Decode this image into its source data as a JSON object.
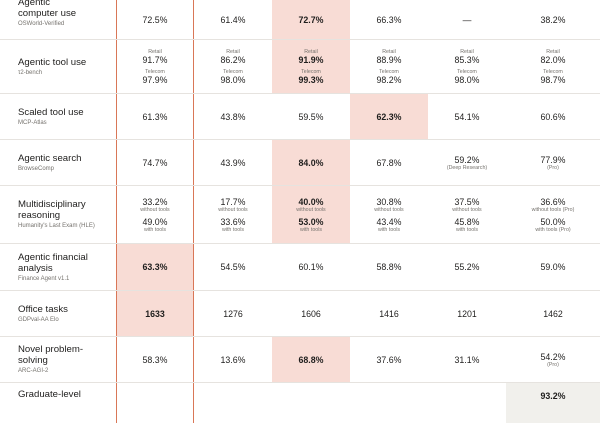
{
  "highlight_color": "#f8dcd5",
  "accent_line_color": "#d97757",
  "rows": [
    {
      "name": "Agentic\ncomputer use",
      "sub": "OSWorld-Verified",
      "cells": [
        {
          "value": "72.5%"
        },
        {
          "value": "61.4%"
        },
        {
          "value": "72.7%"
        },
        {
          "value": "66.3%"
        },
        {
          "value": "—"
        },
        {
          "value": "38.2%"
        }
      ]
    },
    {
      "name": "Agentic tool use",
      "sub": "τ2-bench",
      "cells": [
        {
          "l1": "Retail",
          "v1": "91.7%",
          "l2": "Telecom",
          "v2": "97.9%"
        },
        {
          "l1": "Retail",
          "v1": "86.2%",
          "l2": "Telecom",
          "v2": "98.0%"
        },
        {
          "l1": "Retail",
          "v1": "91.9%",
          "l2": "Telecom",
          "v2": "99.3%"
        },
        {
          "l1": "Retail",
          "v1": "88.9%",
          "l2": "Telecom",
          "v2": "98.2%"
        },
        {
          "l1": "Retail",
          "v1": "85.3%",
          "l2": "Telecom",
          "v2": "98.0%"
        },
        {
          "l1": "Retail",
          "v1": "82.0%",
          "l2": "Telecom",
          "v2": "98.7%"
        }
      ]
    },
    {
      "name": "Scaled tool use",
      "sub": "MCP-Atlas",
      "cells": [
        {
          "value": "61.3%"
        },
        {
          "value": "43.8%"
        },
        {
          "value": "59.5%"
        },
        {
          "value": "62.3%"
        },
        {
          "value": "54.1%"
        },
        {
          "value": "60.6%"
        }
      ]
    },
    {
      "name": "Agentic search",
      "sub": "BrowseComp",
      "cells": [
        {
          "value": "74.7%"
        },
        {
          "value": "43.9%"
        },
        {
          "value": "84.0%"
        },
        {
          "value": "67.8%"
        },
        {
          "value": "59.2%",
          "note": "(Deep Research)"
        },
        {
          "value": "77.9%",
          "note": "(Pro)"
        }
      ]
    },
    {
      "name": "Multidisciplinary\nreasoning",
      "sub": "Humanity's Last Exam (HLE)",
      "cells": [
        {
          "v1": "33.2%",
          "l1": "without tools",
          "v2": "49.0%",
          "l2": "with tools"
        },
        {
          "v1": "17.7%",
          "l1": "without tools",
          "v2": "33.6%",
          "l2": "with tools"
        },
        {
          "v1": "40.0%",
          "l1": "without tools",
          "v2": "53.0%",
          "l2": "with tools"
        },
        {
          "v1": "30.8%",
          "l1": "without tools",
          "v2": "43.4%",
          "l2": "with tools"
        },
        {
          "v1": "37.5%",
          "l1": "without tools",
          "v2": "45.8%",
          "l2": "with tools"
        },
        {
          "v1": "36.6%",
          "l1": "without tools (Pro)",
          "v2": "50.0%",
          "l2": "with tools (Pro)"
        }
      ]
    },
    {
      "name": "Agentic financial\nanalysis",
      "sub": "Finance Agent v1.1",
      "cells": [
        {
          "value": "63.3%"
        },
        {
          "value": "54.5%"
        },
        {
          "value": "60.1%"
        },
        {
          "value": "58.8%"
        },
        {
          "value": "55.2%"
        },
        {
          "value": "59.0%"
        }
      ]
    },
    {
      "name": "Office tasks",
      "sub": "GDPval-AA Elo",
      "cells": [
        {
          "value": "1633"
        },
        {
          "value": "1276"
        },
        {
          "value": "1606"
        },
        {
          "value": "1416"
        },
        {
          "value": "1201"
        },
        {
          "value": "1462"
        }
      ]
    },
    {
      "name": "Novel problem-\nsolving",
      "sub": "ARC-AGI-2",
      "cells": [
        {
          "value": "58.3%"
        },
        {
          "value": "13.6%"
        },
        {
          "value": "68.8%"
        },
        {
          "value": "37.6%"
        },
        {
          "value": "31.1%"
        },
        {
          "value": "54.2%",
          "note": "(Pro)"
        }
      ]
    },
    {
      "name": "Graduate-level",
      "sub": "",
      "cells": [
        {
          "value": ""
        },
        {
          "value": ""
        },
        {
          "value": ""
        },
        {
          "value": ""
        },
        {
          "value": ""
        },
        {
          "value": "93.2%"
        }
      ]
    }
  ]
}
